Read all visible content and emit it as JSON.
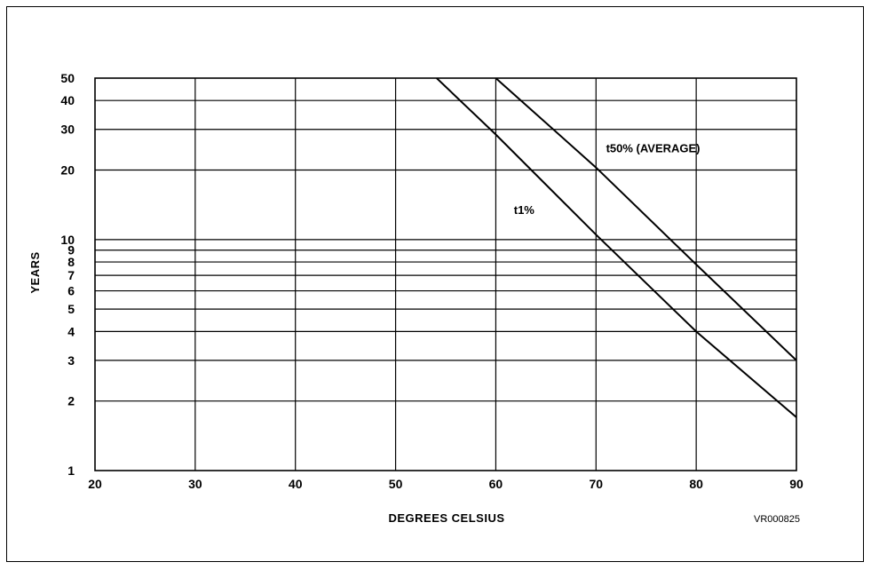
{
  "chart_data": {
    "type": "line",
    "title": "",
    "xlabel": "DEGREES CELSIUS",
    "ylabel": "YEARS",
    "x_scale": "linear",
    "y_scale": "log",
    "xlim": [
      20,
      90
    ],
    "ylim": [
      1,
      50
    ],
    "x_ticks": [
      20,
      30,
      40,
      50,
      60,
      70,
      80,
      90
    ],
    "x_tick_labels": [
      "20",
      "30",
      "40",
      "50",
      "60",
      "70",
      "80",
      "90"
    ],
    "y_ticks": [
      1,
      2,
      3,
      4,
      5,
      6,
      7,
      8,
      9,
      10,
      20,
      30,
      40,
      50
    ],
    "y_tick_labels": [
      "1",
      "2",
      "3",
      "4",
      "5",
      "6",
      "7",
      "8",
      "9",
      "10",
      "20",
      "30",
      "40",
      "50"
    ],
    "grid": true,
    "series": [
      {
        "name": "t1%",
        "x": [
          54.1,
          60,
          70,
          80,
          90
        ],
        "y": [
          50,
          28.5,
          10.5,
          4,
          1.7
        ]
      },
      {
        "name": "t50% (AVERAGE)",
        "x": [
          60,
          70,
          80,
          90
        ],
        "y": [
          50,
          20.5,
          7.8,
          3
        ]
      }
    ],
    "annotations": [
      {
        "text": "t50% (AVERAGE)",
        "x": 71,
        "y": 25
      },
      {
        "text": "t1%",
        "x": 61.8,
        "y": 13.5
      },
      {
        "text": "VR000825",
        "position": "bottom-right"
      }
    ]
  }
}
